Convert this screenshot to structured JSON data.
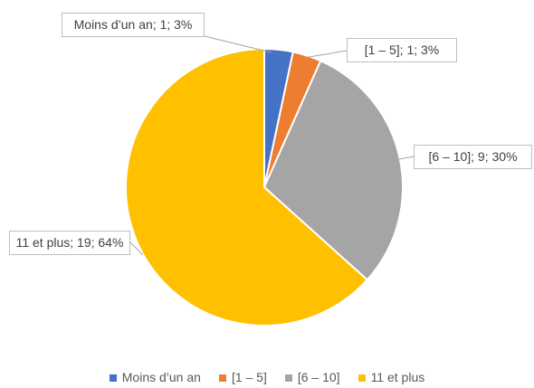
{
  "chart_data": {
    "type": "pie",
    "categories": [
      "Moins d’un an",
      "[1 – 5]",
      "[6 – 10]",
      "11 et plus"
    ],
    "values": [
      1,
      1,
      9,
      19
    ],
    "value_labels": [
      "Moins d’un an; 1; 3%",
      "[1 – 5]; 1; 3%",
      "[6 – 10]; 9; 30%",
      "11 et plus; 19; 64%"
    ],
    "colors": [
      "#4472c4",
      "#ed7d31",
      "#a5a5a5",
      "#ffc000"
    ],
    "legend": "bottom"
  }
}
